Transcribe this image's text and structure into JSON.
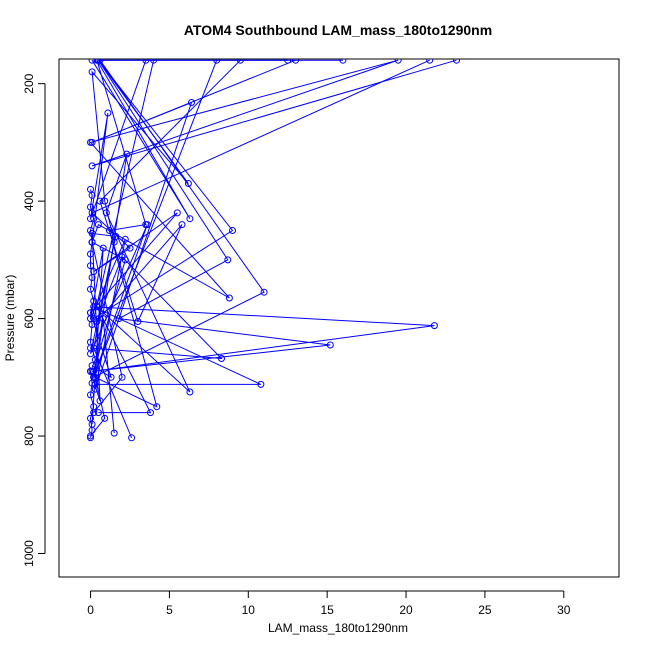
{
  "chart_data": {
    "type": "line",
    "title": "ATOM4 Southbound LAM_mass_180to1290nm",
    "xlabel": "LAM_mass_180to1290nm",
    "ylabel": "Pressure (mbar)",
    "xlim": [
      -2,
      33.5
    ],
    "ylim": [
      1040,
      158
    ],
    "y_reversed": true,
    "x_ticks": [
      0,
      5,
      10,
      15,
      20,
      25,
      30
    ],
    "y_ticks": [
      200,
      400,
      600,
      800,
      1000
    ],
    "grid": false,
    "series_color": "#0000ff",
    "series": [
      {
        "x": [
          0.0,
          0.1,
          0.0,
          0.2,
          0.0,
          0.1,
          0.0,
          0.3,
          0.0,
          0.1,
          0.0,
          0.2,
          0.0,
          0.1,
          0.0,
          0.0,
          0.1,
          0.0,
          0.2,
          0.0,
          0.1,
          0.0
        ],
        "y": [
          803,
          790,
          770,
          750,
          730,
          710,
          690,
          670,
          640,
          610,
          590,
          570,
          550,
          530,
          510,
          490,
          470,
          450,
          430,
          410,
          390,
          380
        ]
      },
      {
        "x": [
          2.6,
          0.2,
          1.5,
          0.9,
          0.1,
          6.2,
          0.5,
          9.0,
          0.2,
          4.0
        ],
        "y": [
          803,
          650,
          470,
          400,
          180,
          370,
          160,
          450,
          600,
          160
        ]
      },
      {
        "x": [
          1.5,
          0.8,
          0.3,
          4.2,
          1.2,
          3.5,
          0.4,
          6.3,
          0.1
        ],
        "y": [
          795,
          600,
          700,
          750,
          450,
          440,
          160,
          430,
          160
        ]
      },
      {
        "x": [
          0.5,
          3.8,
          0.4,
          6.3,
          1.0,
          2.3,
          0.2,
          11.0,
          0.6,
          16.0
        ],
        "y": [
          760,
          760,
          580,
          725,
          420,
          320,
          700,
          555,
          160,
          160
        ]
      },
      {
        "x": [
          0.3,
          10.8,
          0.2,
          21.8,
          0.1,
          15.2,
          1.8,
          8.7,
          0.5,
          12.5
        ],
        "y": [
          712,
          712,
          580,
          612,
          690,
          645,
          600,
          500,
          160,
          160
        ]
      },
      {
        "x": [
          0.0,
          8.3,
          2.0,
          0.4,
          5.8,
          3.0,
          0.6,
          9.5
        ],
        "y": [
          650,
          668,
          495,
          605,
          440,
          605,
          400,
          160
        ]
      },
      {
        "x": [
          0.1,
          1.3,
          0.0,
          5.5,
          0.2,
          2.5,
          0.1,
          21.5
        ],
        "y": [
          680,
          700,
          590,
          420,
          520,
          480,
          420,
          160
        ]
      },
      {
        "x": [
          0.0,
          0.9,
          0.2,
          2.2,
          0.1,
          1.1,
          0.0,
          3.5
        ],
        "y": [
          800,
          770,
          690,
          500,
          470,
          250,
          430,
          160
        ]
      },
      {
        "x": [
          0.2,
          2.0,
          0.1,
          0.5,
          8.8,
          0.0,
          19.5,
          0.1,
          23.2
        ],
        "y": [
          760,
          700,
          470,
          440,
          565,
          300,
          160,
          340,
          160
        ]
      },
      {
        "x": [
          0.1,
          0.8,
          0.0,
          2.2,
          0.3,
          6.4,
          0.1,
          13.0
        ],
        "y": [
          780,
          480,
          600,
          465,
          720,
          232,
          300,
          160
        ]
      },
      {
        "x": [
          0.0,
          0.6,
          0.1,
          1.6,
          0.0,
          3.6,
          0.2,
          8.0
        ],
        "y": [
          690,
          740,
          455,
          460,
          660,
          440,
          700,
          160
        ]
      }
    ]
  }
}
